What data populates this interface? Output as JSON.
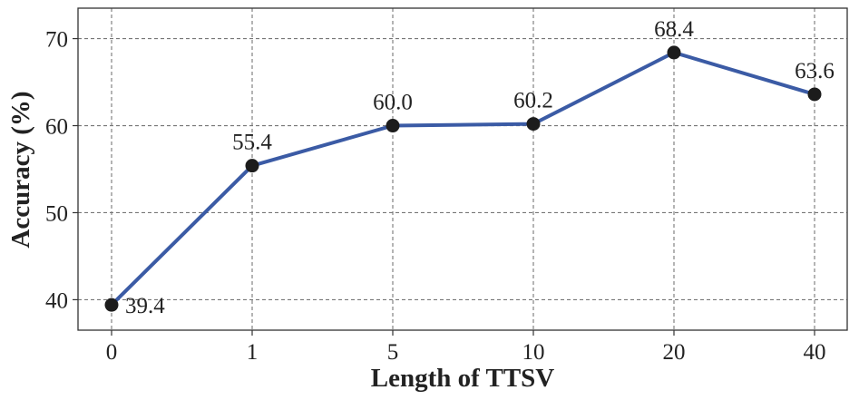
{
  "chart_data": {
    "type": "line",
    "categories": [
      "0",
      "1",
      "5",
      "10",
      "20",
      "40"
    ],
    "series": [
      {
        "values": [
          39.4,
          55.4,
          60.0,
          60.2,
          68.4,
          63.6
        ]
      }
    ],
    "data_labels": [
      "39.4",
      "55.4",
      "60.0",
      "60.2",
      "68.4",
      "63.6"
    ],
    "xlabel": "Length of TTSV",
    "ylabel": "Accuracy (%)",
    "yticks": [
      40,
      50,
      60,
      70
    ],
    "ylim": [
      36.5,
      73.5
    ],
    "grid": true,
    "line_color": "#3b5ba5",
    "marker_color": "#1c1c1c"
  }
}
